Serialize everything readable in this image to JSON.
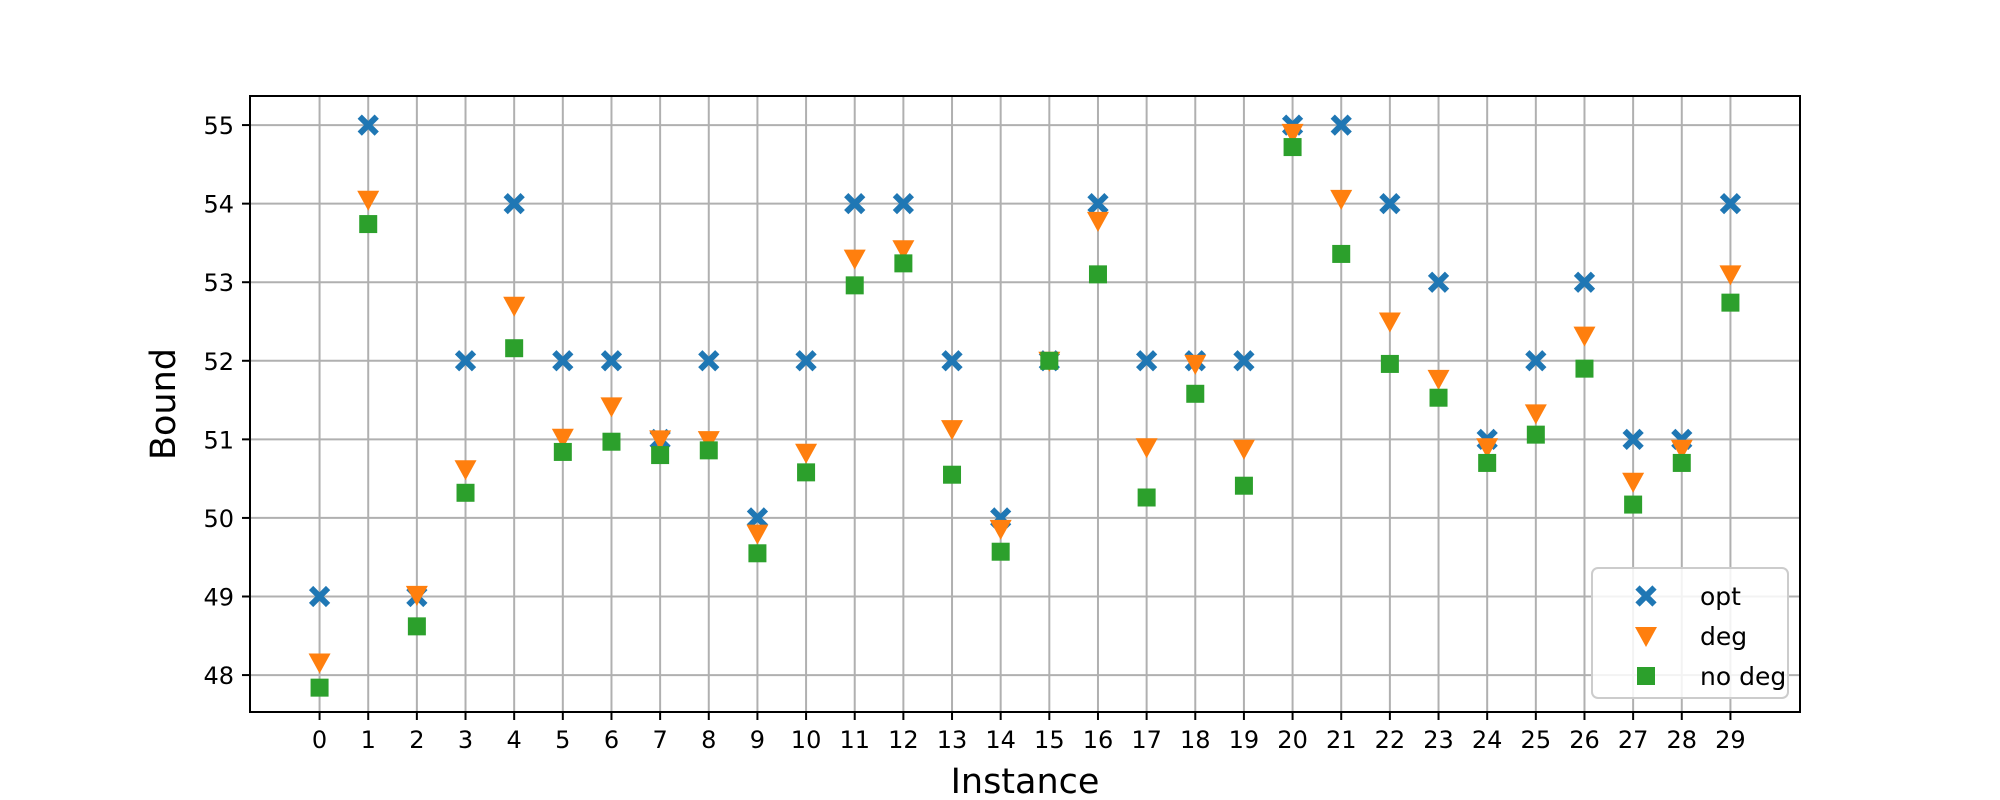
{
  "chart_data": {
    "type": "scatter",
    "xlabel": "Instance",
    "ylabel": "Bound",
    "x": [
      0,
      1,
      2,
      3,
      4,
      5,
      6,
      7,
      8,
      9,
      10,
      11,
      12,
      13,
      14,
      15,
      16,
      17,
      18,
      19,
      20,
      21,
      22,
      23,
      24,
      25,
      26,
      27,
      28,
      29
    ],
    "xticks": [
      "0",
      "1",
      "2",
      "3",
      "4",
      "5",
      "6",
      "7",
      "8",
      "9",
      "10",
      "11",
      "12",
      "13",
      "14",
      "15",
      "16",
      "17",
      "18",
      "19",
      "20",
      "21",
      "22",
      "23",
      "24",
      "25",
      "26",
      "27",
      "28",
      "29"
    ],
    "yticks": [
      "48",
      "49",
      "50",
      "51",
      "52",
      "53",
      "54",
      "55"
    ],
    "xlim": [
      -1.43,
      30.43
    ],
    "ylim": [
      47.53,
      55.37
    ],
    "grid": true,
    "legend_position": "bottom-right",
    "series": [
      {
        "name": "opt",
        "marker": "x",
        "color": "#1f77b4",
        "values": [
          49,
          55,
          49,
          52,
          54,
          52,
          52,
          51,
          52,
          50,
          52,
          54,
          54,
          52,
          50,
          52,
          54,
          52,
          52,
          52,
          55,
          55,
          54,
          53,
          51,
          52,
          53,
          51,
          51,
          54
        ]
      },
      {
        "name": "deg",
        "marker": "triangle-down",
        "color": "#ff7f0e",
        "values": [
          48.16,
          54.05,
          49.02,
          50.62,
          52.7,
          51.02,
          51.42,
          51.0,
          50.99,
          49.8,
          50.83,
          53.3,
          53.42,
          51.13,
          49.86,
          52.0,
          53.78,
          50.9,
          51.96,
          50.88,
          54.9,
          54.06,
          52.5,
          51.77,
          50.9,
          51.33,
          52.32,
          50.46,
          50.88,
          53.1
        ]
      },
      {
        "name": "no deg",
        "marker": "square",
        "color": "#2ca02c",
        "values": [
          47.84,
          53.74,
          48.62,
          50.32,
          52.16,
          50.84,
          50.97,
          50.8,
          50.86,
          49.55,
          50.58,
          52.96,
          53.24,
          50.55,
          49.57,
          52.0,
          53.1,
          50.26,
          51.58,
          50.41,
          54.72,
          53.36,
          51.96,
          51.53,
          50.7,
          51.06,
          51.9,
          50.17,
          50.7,
          52.74
        ]
      }
    ]
  }
}
